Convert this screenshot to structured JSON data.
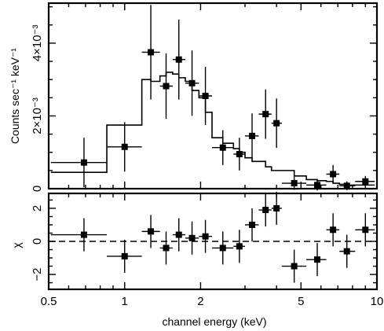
{
  "chart_data": {
    "type": "scatter",
    "xlabel": "channel energy (keV)",
    "x_scale": "log",
    "xlim": [
      0.5,
      10
    ],
    "x_ticks": [
      0.5,
      1,
      2,
      5,
      10
    ],
    "x_tick_labels": [
      "0.5",
      "1",
      "2",
      "5",
      "10"
    ],
    "top_panel": {
      "ylabel": "Counts sec⁻¹ keV⁻¹",
      "ylim": [
        0,
        0.0051
      ],
      "y_ticks": [
        0,
        0.002,
        0.004
      ],
      "y_tick_labels": [
        "0",
        "2×10⁻³",
        "4×10⁻³"
      ],
      "data": [
        {
          "x": 0.69,
          "xlo": 0.51,
          "xhi": 0.85,
          "y": 0.00072,
          "yerr": 0.00068
        },
        {
          "x": 1.0,
          "xlo": 0.85,
          "xhi": 1.17,
          "y": 0.00115,
          "yerr": 0.00068
        },
        {
          "x": 1.27,
          "xlo": 1.17,
          "xhi": 1.38,
          "y": 0.00375,
          "yerr": 0.0013
        },
        {
          "x": 1.46,
          "xlo": 1.38,
          "xhi": 1.55,
          "y": 0.00282,
          "yerr": 0.0009
        },
        {
          "x": 1.64,
          "xlo": 1.55,
          "xhi": 1.74,
          "y": 0.00355,
          "yerr": 0.0011
        },
        {
          "x": 1.85,
          "xlo": 1.74,
          "xhi": 1.97,
          "y": 0.0029,
          "yerr": 0.0009
        },
        {
          "x": 2.09,
          "xlo": 1.97,
          "xhi": 2.22,
          "y": 0.00255,
          "yerr": 0.0008
        },
        {
          "x": 2.45,
          "xlo": 2.22,
          "xhi": 2.7,
          "y": 0.00113,
          "yerr": 0.00048
        },
        {
          "x": 2.85,
          "xlo": 2.7,
          "xhi": 3.0,
          "y": 0.00095,
          "yerr": 0.00045
        },
        {
          "x": 3.2,
          "xlo": 3.0,
          "xhi": 3.4,
          "y": 0.00145,
          "yerr": 0.00062
        },
        {
          "x": 3.62,
          "xlo": 3.4,
          "xhi": 3.82,
          "y": 0.00205,
          "yerr": 0.00068
        },
        {
          "x": 4.0,
          "xlo": 3.82,
          "xhi": 4.2,
          "y": 0.0018,
          "yerr": 0.00068
        },
        {
          "x": 4.7,
          "xlo": 4.2,
          "xhi": 5.25,
          "y": 0.00015,
          "yerr": 0.00018
        },
        {
          "x": 5.8,
          "xlo": 5.25,
          "xhi": 6.3,
          "y": 0.0001,
          "yerr": 0.00015
        },
        {
          "x": 6.7,
          "xlo": 6.3,
          "xhi": 7.1,
          "y": 0.0004,
          "yerr": 0.00025
        },
        {
          "x": 7.6,
          "xlo": 7.1,
          "xhi": 8.2,
          "y": 8e-05,
          "yerr": 0.00012
        },
        {
          "x": 9.0,
          "xlo": 8.2,
          "xhi": 9.8,
          "y": 0.0002,
          "yerr": 0.00015
        }
      ],
      "model": {
        "edges": [
          0.51,
          0.85,
          1.17,
          1.27,
          1.38,
          1.46,
          1.55,
          1.64,
          1.74,
          1.85,
          1.97,
          2.09,
          2.22,
          2.45,
          2.7,
          2.85,
          3.0,
          3.2,
          3.4,
          3.62,
          3.82,
          4.0,
          4.2,
          4.7,
          5.25,
          5.8,
          6.3,
          6.7,
          7.1,
          7.6,
          8.2,
          9.0,
          9.8
        ],
        "values": [
          0.00045,
          0.00175,
          0.003,
          0.00295,
          0.0031,
          0.0032,
          0.00315,
          0.00305,
          0.00295,
          0.0027,
          0.0025,
          0.0021,
          0.0014,
          0.00125,
          0.0011,
          0.001,
          0.00085,
          0.00075,
          0.00075,
          0.0006,
          0.0005,
          0.0005,
          0.0005,
          0.00035,
          0.00025,
          0.00022,
          0.0002,
          0.00015,
          0.00012,
          0.0001,
          0.0001,
          0.0001
        ]
      }
    },
    "bottom_panel": {
      "ylabel": "χ",
      "ylim": [
        -2.9,
        2.9
      ],
      "y_ticks": [
        -2,
        0,
        2
      ],
      "y_tick_labels": [
        "−2",
        "0",
        "2"
      ],
      "zero_line": true,
      "data": [
        {
          "x": 0.69,
          "xlo": 0.51,
          "xhi": 0.85,
          "y": 0.4,
          "yerr": 1.0
        },
        {
          "x": 1.0,
          "xlo": 0.85,
          "xhi": 1.17,
          "y": -0.9,
          "yerr": 1.0
        },
        {
          "x": 1.27,
          "xlo": 1.17,
          "xhi": 1.38,
          "y": 0.6,
          "yerr": 1.0
        },
        {
          "x": 1.46,
          "xlo": 1.38,
          "xhi": 1.55,
          "y": -0.4,
          "yerr": 1.0
        },
        {
          "x": 1.64,
          "xlo": 1.55,
          "xhi": 1.74,
          "y": 0.4,
          "yerr": 1.0
        },
        {
          "x": 1.85,
          "xlo": 1.74,
          "xhi": 1.97,
          "y": 0.2,
          "yerr": 1.0
        },
        {
          "x": 2.09,
          "xlo": 1.97,
          "xhi": 2.22,
          "y": 0.3,
          "yerr": 1.0
        },
        {
          "x": 2.45,
          "xlo": 2.22,
          "xhi": 2.7,
          "y": -0.4,
          "yerr": 1.0
        },
        {
          "x": 2.85,
          "xlo": 2.7,
          "xhi": 3.0,
          "y": -0.3,
          "yerr": 1.0
        },
        {
          "x": 3.2,
          "xlo": 3.0,
          "xhi": 3.4,
          "y": 1.0,
          "yerr": 1.0
        },
        {
          "x": 3.62,
          "xlo": 3.4,
          "xhi": 3.82,
          "y": 1.9,
          "yerr": 1.0
        },
        {
          "x": 4.0,
          "xlo": 3.82,
          "xhi": 4.2,
          "y": 2.0,
          "yerr": 1.0
        },
        {
          "x": 4.7,
          "xlo": 4.2,
          "xhi": 5.25,
          "y": -1.5,
          "yerr": 1.0
        },
        {
          "x": 5.8,
          "xlo": 5.25,
          "xhi": 6.3,
          "y": -1.1,
          "yerr": 1.0
        },
        {
          "x": 6.7,
          "xlo": 6.3,
          "xhi": 7.1,
          "y": 0.7,
          "yerr": 1.0
        },
        {
          "x": 7.6,
          "xlo": 7.1,
          "xhi": 8.2,
          "y": -0.6,
          "yerr": 1.0
        },
        {
          "x": 9.0,
          "xlo": 8.2,
          "xhi": 9.8,
          "y": 0.7,
          "yerr": 1.0
        }
      ]
    }
  }
}
